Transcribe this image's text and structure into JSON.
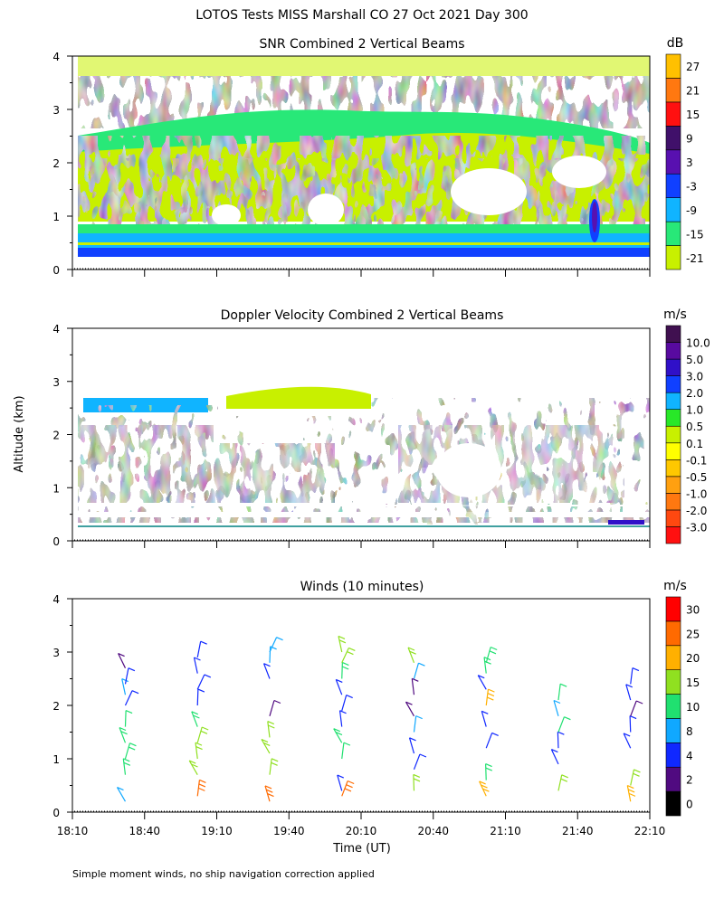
{
  "figure_title": "LOTOS Tests MISS Marshall CO  27 Oct 2021 Day 300",
  "footnote": "Simple moment winds, no ship navigation correction applied",
  "shared_axes": {
    "ylabel": "Altitude (km)",
    "xlabel": "Time (UT)",
    "y_ticks": [
      0,
      1,
      2,
      3,
      4
    ],
    "ylim": [
      0,
      4
    ],
    "x_tick_labels": [
      "18:10",
      "18:40",
      "19:10",
      "19:40",
      "20:10",
      "20:40",
      "21:10",
      "21:40",
      "22:10"
    ]
  },
  "chart_data": [
    {
      "type": "heatmap",
      "title": "SNR Combined 2 Vertical Beams",
      "unit": "dB",
      "colorbar": {
        "colors": [
          "#c8f000",
          "#28e878",
          "#10b4ff",
          "#1040ff",
          "#5810b0",
          "#40106a",
          "#ff1010",
          "#ff7810",
          "#ffc000"
        ],
        "labels": [
          "-21",
          "-15",
          "-9",
          "-3",
          "3",
          "9",
          "15",
          "21",
          "27"
        ]
      },
      "features": {
        "strong_band_km": [
          0.3,
          0.6
        ],
        "main_echo_top_km": 2.6,
        "cloud_layer_km": [
          2.4,
          3.3
        ]
      }
    },
    {
      "type": "heatmap",
      "title": "Doppler Velocity Combined 2 Vertical Beams",
      "unit": "m/s",
      "colorbar": {
        "colors": [
          "#ff1010",
          "#ff4810",
          "#ff7810",
          "#ffa010",
          "#ffc800",
          "#ffff00",
          "#c8f000",
          "#28e828",
          "#10b4ff",
          "#1040ff",
          "#3010c8",
          "#580aa0",
          "#401050"
        ],
        "labels": [
          "-3.0",
          "-2.0",
          "-1.0",
          "-0.5",
          "-0.1",
          "0.1",
          "0.5",
          "1.0",
          "2.0",
          "3.0",
          "5.0",
          "10.0"
        ]
      }
    },
    {
      "type": "wind_barbs",
      "title": "Winds (10 minutes)",
      "unit": "m/s",
      "colorbar": {
        "colors": [
          "#000000",
          "#500a80",
          "#1028ff",
          "#10a8ff",
          "#20e070",
          "#90e020",
          "#ffb000",
          "#ff6a00",
          "#ff0000"
        ],
        "labels": [
          "0",
          "2",
          "4",
          "8",
          "10",
          "15",
          "20",
          "25",
          "30"
        ]
      },
      "profile_times": [
        "18:32",
        "19:02",
        "19:32",
        "20:02",
        "20:32",
        "21:02",
        "21:32",
        "22:02"
      ],
      "profiles": [
        {
          "time": "18:32",
          "samples": [
            [
              0.2,
              8
            ],
            [
              0.7,
              12
            ],
            [
              1.0,
              14
            ],
            [
              1.3,
              14
            ],
            [
              1.6,
              11
            ],
            [
              2.0,
              6
            ],
            [
              2.2,
              9
            ],
            [
              2.4,
              4
            ],
            [
              2.7,
              3
            ]
          ]
        },
        {
          "time": "19:02",
          "samples": [
            [
              0.3,
              25
            ],
            [
              0.7,
              15
            ],
            [
              1.0,
              16
            ],
            [
              1.3,
              17
            ],
            [
              1.6,
              13
            ],
            [
              2.0,
              5
            ],
            [
              2.3,
              7
            ],
            [
              2.6,
              5
            ],
            [
              2.9,
              6
            ]
          ]
        },
        {
          "time": "19:32",
          "samples": [
            [
              0.2,
              25
            ],
            [
              0.7,
              15
            ],
            [
              1.1,
              16
            ],
            [
              1.4,
              15
            ],
            [
              1.8,
              3
            ],
            [
              2.5,
              4
            ],
            [
              2.8,
              9
            ],
            [
              3.0,
              8
            ]
          ]
        },
        {
          "time": "20:02",
          "samples": [
            [
              0.3,
              27
            ],
            [
              0.4,
              4
            ],
            [
              1.0,
              11
            ],
            [
              1.3,
              12
            ],
            [
              1.6,
              4
            ],
            [
              1.9,
              4
            ],
            [
              2.2,
              4
            ],
            [
              2.5,
              13
            ],
            [
              2.8,
              18
            ],
            [
              3.0,
              17
            ]
          ]
        },
        {
          "time": "20:32",
          "samples": [
            [
              0.4,
              17
            ],
            [
              0.8,
              6
            ],
            [
              1.1,
              5
            ],
            [
              1.5,
              9
            ],
            [
              1.8,
              2
            ],
            [
              2.2,
              3
            ],
            [
              2.5,
              8
            ],
            [
              2.8,
              17
            ]
          ]
        },
        {
          "time": "21:02",
          "samples": [
            [
              0.3,
              22
            ],
            [
              0.6,
              14
            ],
            [
              1.2,
              4
            ],
            [
              1.6,
              5
            ],
            [
              2.0,
              22
            ],
            [
              2.3,
              6
            ],
            [
              2.6,
              12
            ],
            [
              2.8,
              13
            ]
          ]
        },
        {
          "time": "21:32",
          "samples": [
            [
              0.4,
              18
            ],
            [
              0.9,
              5
            ],
            [
              1.2,
              6
            ],
            [
              1.5,
              10
            ],
            [
              1.8,
              9
            ],
            [
              2.1,
              10
            ]
          ]
        },
        {
          "time": "22:02",
          "samples": [
            [
              0.2,
              24
            ],
            [
              0.5,
              16
            ],
            [
              1.2,
              5
            ],
            [
              1.5,
              4
            ],
            [
              1.8,
              3
            ],
            [
              2.1,
              5
            ],
            [
              2.4,
              4
            ]
          ]
        }
      ]
    }
  ]
}
